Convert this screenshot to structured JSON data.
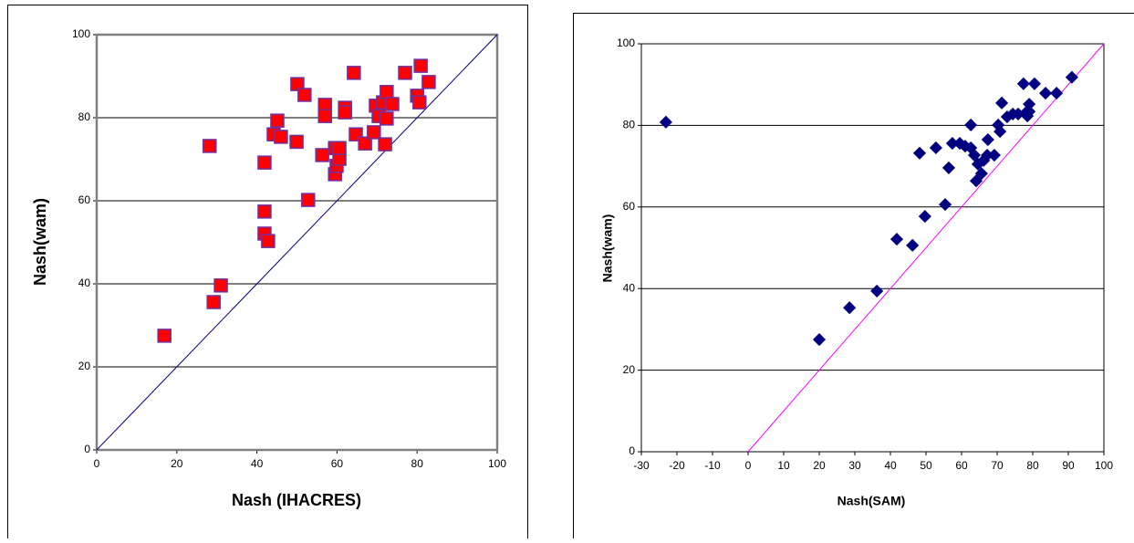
{
  "chart_data": [
    {
      "type": "scatter",
      "x_label": "Nash (IHACRES)",
      "y_label": "Nash(wam)",
      "xlim": [
        0,
        100
      ],
      "ylim": [
        0,
        100
      ],
      "xticks": [
        0,
        20,
        40,
        60,
        80,
        100
      ],
      "yticks": [
        0,
        20,
        40,
        60,
        80,
        100
      ],
      "grid": true,
      "marker": "square",
      "color": "#ff0000",
      "edge_color": "#7030a0",
      "reference_line": {
        "x": [
          0,
          100
        ],
        "y": [
          0,
          100
        ],
        "color": "#000080"
      },
      "x": [
        16.9,
        28.2,
        29.2,
        31.0,
        41.9,
        41.9,
        41.9,
        42.8,
        44.2,
        45.1,
        46.0,
        50.1,
        51.9,
        49.9,
        52.8,
        56.3,
        57.0,
        57.0,
        59.5,
        59.5,
        59.9,
        60.6,
        60.6,
        62.0,
        62.0,
        64.2,
        64.7,
        67.0,
        69.2,
        69.7,
        70.4,
        71.5,
        72.4,
        72.4,
        73.8,
        72.0,
        77.0,
        80.0,
        80.6,
        80.9,
        82.9
      ],
      "values": [
        27.5,
        73.2,
        35.6,
        39.6,
        69.2,
        57.4,
        52.1,
        50.3,
        76.0,
        79.3,
        75.4,
        88.1,
        85.5,
        74.2,
        60.2,
        71.0,
        83.1,
        80.4,
        72.7,
        66.4,
        68.4,
        70.1,
        72.7,
        82.4,
        81.3,
        90.8,
        76.0,
        73.8,
        76.5,
        82.9,
        80.4,
        83.7,
        79.8,
        86.2,
        83.3,
        73.6,
        90.8,
        85.3,
        83.7,
        92.5,
        88.6
      ]
    },
    {
      "type": "scatter",
      "x_label": "Nash(SAM)",
      "y_label": "Nash(wam)",
      "xlim": [
        -30,
        100
      ],
      "ylim": [
        0,
        100
      ],
      "xticks": [
        -30,
        -20,
        -10,
        0,
        10,
        20,
        30,
        40,
        50,
        60,
        70,
        80,
        90,
        100
      ],
      "yticks": [
        0,
        20,
        40,
        60,
        80,
        100
      ],
      "grid": true,
      "marker": "diamond",
      "color": "#000080",
      "edge_color": "#000080",
      "reference_line": {
        "x": [
          0,
          100
        ],
        "y": [
          0,
          100
        ],
        "color": "#ff00ff"
      },
      "x": [
        -23.1,
        20.0,
        28.5,
        36.2,
        41.8,
        46.2,
        48.2,
        49.7,
        52.8,
        55.4,
        56.4,
        57.4,
        59.5,
        61.0,
        62.6,
        62.6,
        63.6,
        64.1,
        64.6,
        65.6,
        66.2,
        67.2,
        67.4,
        69.2,
        70.3,
        70.8,
        71.3,
        72.8,
        74.4,
        75.9,
        77.4,
        78.5,
        78.5,
        79.0,
        79.0,
        80.5,
        83.6,
        86.7,
        91.0
      ],
      "values": [
        80.8,
        27.5,
        35.3,
        39.4,
        52.1,
        50.6,
        73.2,
        57.7,
        74.5,
        60.6,
        69.6,
        75.6,
        75.6,
        74.9,
        80.1,
        74.5,
        72.7,
        66.4,
        70.5,
        68.2,
        71.4,
        72.7,
        76.5,
        72.7,
        80.1,
        78.5,
        85.5,
        82.1,
        82.8,
        82.8,
        90.2,
        82.3,
        83.5,
        85.2,
        83.4,
        90.2,
        87.9,
        87.9,
        91.8
      ]
    }
  ]
}
